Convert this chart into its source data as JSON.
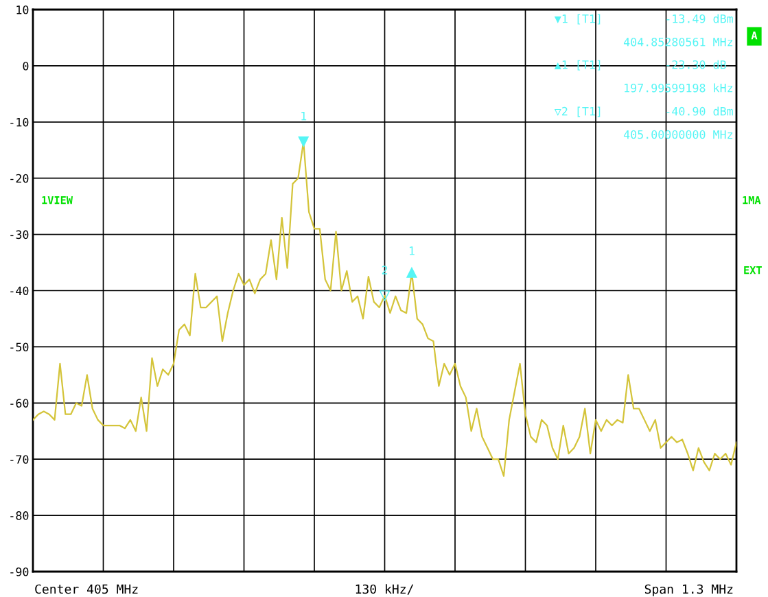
{
  "chart_data": {
    "type": "line",
    "categories": [
      null,
      null,
      null,
      null,
      null,
      null,
      null,
      null,
      null,
      null,
      null,
      null,
      null,
      null,
      null,
      null,
      null,
      null,
      null,
      null,
      null,
      null,
      null,
      null,
      null,
      null,
      null,
      null,
      null,
      null,
      null,
      null,
      null,
      null,
      null,
      null,
      null,
      null,
      null,
      null,
      null,
      null,
      null,
      null,
      null,
      null,
      null,
      null,
      null,
      null,
      null,
      null,
      null,
      null,
      null,
      null,
      null,
      null,
      null,
      null,
      null,
      null,
      null,
      null,
      null,
      null,
      null,
      null,
      null,
      null,
      null,
      null,
      null,
      null,
      null,
      null,
      null,
      null,
      null,
      null,
      null,
      null,
      null,
      null,
      null,
      null,
      null,
      null,
      null,
      null,
      null,
      null,
      null,
      null,
      null,
      null,
      null,
      null,
      null,
      null,
      null,
      null,
      null,
      null,
      null,
      null,
      null,
      null,
      null,
      null,
      null,
      null,
      null,
      null,
      null,
      null,
      null,
      null,
      null,
      null,
      null,
      null,
      null,
      null,
      null,
      null,
      null,
      null,
      null,
      null,
      null
    ],
    "series": [
      {
        "color": "#d4c43a",
        "values": [
          -63,
          -62,
          -61.5,
          -62,
          -63,
          -53,
          -62,
          -62,
          -60,
          -60.5,
          -55,
          -61,
          -63,
          -64,
          -64,
          -64,
          -64,
          -64.5,
          -63,
          -65,
          -59,
          -65,
          -52,
          -57,
          -54,
          -55,
          -53,
          -47,
          -46,
          -48,
          -37,
          -43,
          -43,
          -42,
          -41,
          -49,
          -44,
          -40,
          -37,
          -39,
          -38,
          -40.5,
          -38,
          -37,
          -31,
          -38,
          -27,
          -36,
          -21,
          -20,
          -13.5,
          -26,
          -29,
          -29,
          -38,
          -40,
          -29.5,
          -40,
          -36.5,
          -42,
          -41,
          -45,
          -37.5,
          -42,
          -43,
          -40.9,
          -44,
          -41,
          -43.5,
          -44,
          -36.8,
          -45,
          -46,
          -48.5,
          -49,
          -57,
          -53,
          -55,
          -53,
          -57,
          -59,
          -65,
          -61,
          -66,
          -68,
          -70,
          -70,
          -73,
          -63,
          -58,
          -53,
          -62,
          -66,
          -67,
          -63,
          -64,
          -68,
          -70,
          -64,
          -69,
          -68,
          -66,
          -61,
          -69,
          -63,
          -65,
          -63,
          -64,
          -63,
          -63.5,
          -55,
          -61,
          -61,
          -63,
          -65,
          -63,
          -68,
          -67,
          -66,
          -67,
          -66.5,
          -69,
          -72,
          -68,
          -70.5,
          -72,
          -69,
          -70,
          -69,
          -71,
          -67
        ]
      }
    ],
    "ylim": [
      -90,
      10
    ],
    "yticks": [
      -90,
      -80,
      -70,
      -60,
      -50,
      -40,
      -30,
      -20,
      -10,
      0,
      10
    ],
    "grid": true,
    "annotations": [
      "▼1 [T1]         -13.49 dBm",
      "404.85280561 MHz",
      "▲1 [T1]         -23.30 dB ",
      "197.99599198 kHz",
      "▽2 [T1]         -40.90 dBm",
      "405.00000000 MHz",
      "1VIEW",
      "1MA",
      "EXT",
      "A",
      "Center 405 MHz",
      "130 kHz/",
      "Span 1.3 MHz",
      {
        "text": "1",
        "y": -13.49
      },
      {
        "text": "2",
        "y": -40.9
      },
      {
        "text": "1",
        "y": -36.79
      }
    ]
  }
}
